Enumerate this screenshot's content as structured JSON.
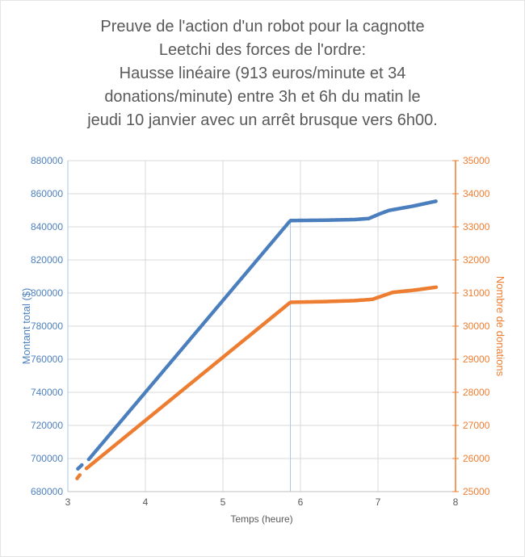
{
  "title_lines": [
    "Preuve de l'action d'un robot pour la cagnotte",
    "Leetchi des forces de l'ordre:",
    "Hausse linéaire (913 euros/minute et 34",
    "donations/minute) entre 3h et 6h du matin le",
    "jeudi 10 janvier avec un arrêt brusque vers 6h00."
  ],
  "chart_data": {
    "type": "scatter",
    "title": "Preuve de l'action d'un robot pour la cagnotte Leetchi des forces de l'ordre: Hausse linéaire (913 euros/minute et 34 donations/minute) entre 3h et 6h du matin le jeudi 10 janvier avec un arrêt brusque vers 6h00.",
    "xlabel": "Temps (heure)",
    "grid": true,
    "grid_color": "#D9D9D9",
    "x_axis": {
      "min": 3,
      "max": 8,
      "ticks": [
        3,
        4,
        5,
        6,
        7,
        8
      ],
      "label": "Temps (heure)",
      "text_color": "#595959",
      "line_color": "#BFBFBF"
    },
    "left_axis": {
      "label": "Montant total ($)",
      "min": 680000,
      "max": 880000,
      "tick_step": 20000,
      "ticks": [
        680000,
        700000,
        720000,
        740000,
        760000,
        780000,
        800000,
        820000,
        840000,
        860000,
        880000
      ],
      "color": "#4E81BD",
      "line_color": "#A6C8E8"
    },
    "right_axis": {
      "label": "Nombre de donations",
      "min": 25000,
      "max": 35000,
      "tick_step": 1000,
      "ticks": [
        25000,
        26000,
        27000,
        28000,
        29000,
        30000,
        31000,
        32000,
        33000,
        34000,
        35000
      ],
      "color": "#ED7D31",
      "line_color": "#ED7D31"
    },
    "series": [
      {
        "name": "Montant total ($)",
        "axis": "left",
        "color": "#4A7EBD",
        "marker": "circle",
        "marker_radius": 2.3,
        "sample_interval_hours": 0.0167,
        "segments": [
          [
            [
              3.13,
              693800
            ],
            [
              3.19,
              696500
            ]
          ],
          [
            [
              3.27,
              699500
            ],
            [
              5.87,
              843800
            ],
            [
              6.3,
              844000
            ],
            [
              6.7,
              844400
            ],
            [
              6.88,
              845000
            ],
            [
              7.02,
              847800
            ],
            [
              7.14,
              849900
            ],
            [
              7.45,
              852500
            ],
            [
              7.76,
              855600
            ]
          ]
        ]
      },
      {
        "name": "Nombre de donations",
        "axis": "right",
        "color": "#ED7D31",
        "marker": "circle",
        "marker_radius": 2.3,
        "sample_interval_hours": 0.0167,
        "segments": [
          [
            [
              3.12,
              25400
            ],
            [
              3.17,
              25550
            ]
          ],
          [
            [
              3.24,
              25700
            ],
            [
              5.87,
              30720
            ],
            [
              6.3,
              30740
            ],
            [
              6.7,
              30770
            ],
            [
              6.93,
              30810
            ],
            [
              7.19,
              31020
            ],
            [
              7.48,
              31090
            ],
            [
              7.76,
              31180
            ]
          ]
        ]
      }
    ],
    "annotations": {
      "drop_line": {
        "t": 5.87,
        "value_left_top": 843800,
        "value_left_bottom": 680000,
        "color": "#A8C8E8"
      }
    },
    "legend": "none"
  },
  "colors": {
    "title_text": "#595959",
    "background": "#FFFFFF",
    "blue_series": "#4A7EBD",
    "orange_series": "#ED7D31",
    "grid": "#D9D9D9"
  }
}
